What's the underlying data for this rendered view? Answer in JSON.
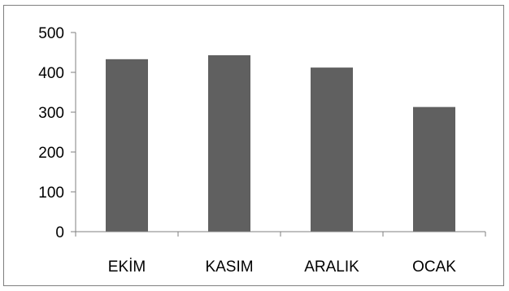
{
  "chart_data": {
    "type": "bar",
    "categories": [
      "EKİM",
      "KASIM",
      "ARALIK",
      "OCAK"
    ],
    "values": [
      433,
      443,
      412,
      313
    ],
    "ylim": [
      0,
      500
    ],
    "yticks": [
      0,
      100,
      200,
      300,
      400,
      500
    ],
    "grid": false,
    "legend": "none",
    "bar_color": "#606060",
    "axis_color": "#7f7f7f"
  }
}
